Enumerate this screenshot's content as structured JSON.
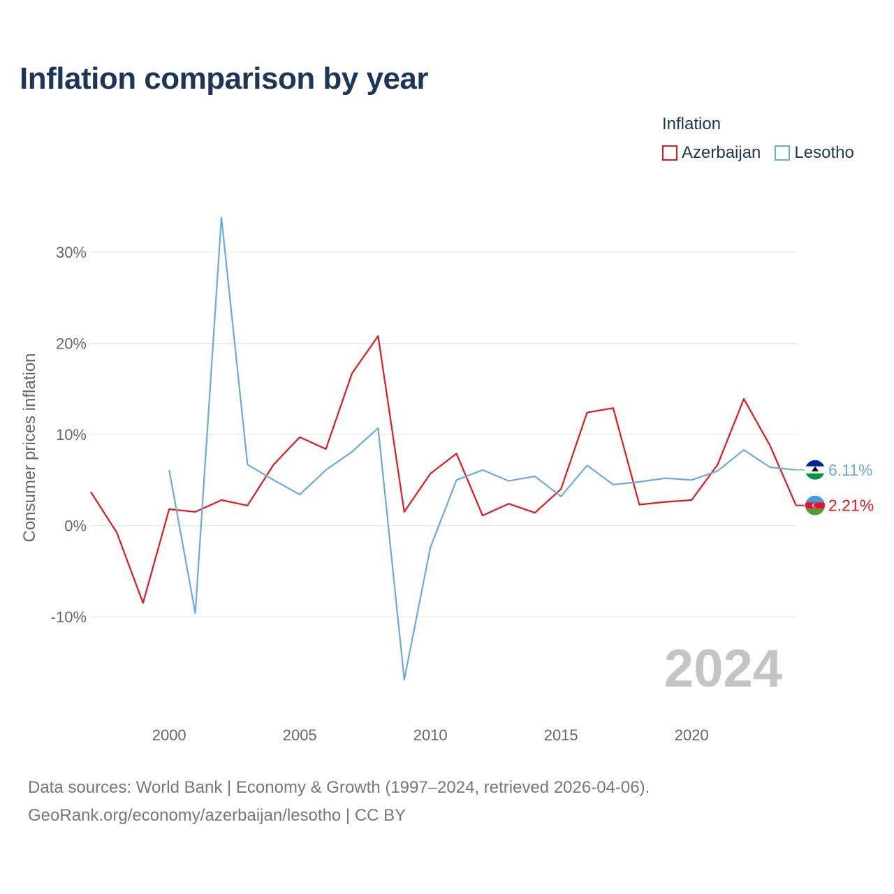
{
  "title": "Inflation comparison by year",
  "legend": {
    "title": "Inflation",
    "items": [
      {
        "name": "Azerbaijan",
        "color": "#e3191c"
      },
      {
        "name": "Lesotho",
        "color": "#6aaae4"
      }
    ]
  },
  "source": {
    "line1": "Data sources: World Bank | Economy & Growth (1997–2024, retrieved 2026-04-06).",
    "line2": "GeoRank.org/economy/azerbaijan/lesotho | CC BY"
  },
  "chart_data": {
    "type": "line",
    "title": "Inflation comparison by year",
    "ylabel": "Consumer prices inflation",
    "xlabel": "",
    "xlim": [
      1997,
      2024
    ],
    "ylim": [
      -20,
      37
    ],
    "yticks": [
      -10,
      0,
      10,
      20,
      30
    ],
    "ytick_labels": [
      "-10%",
      "0%",
      "10%",
      "20%",
      "30%"
    ],
    "xticks": [
      2000,
      2005,
      2010,
      2015,
      2020
    ],
    "xtick_labels": [
      "2000",
      "2005",
      "2010",
      "2015",
      "2020"
    ],
    "year_label": "2024",
    "series": [
      {
        "name": "Azerbaijan",
        "color": "#e3191c",
        "x": [
          1997,
          1998,
          1999,
          2000,
          2001,
          2002,
          2003,
          2004,
          2005,
          2006,
          2007,
          2008,
          2009,
          2010,
          2011,
          2012,
          2013,
          2014,
          2015,
          2016,
          2017,
          2018,
          2019,
          2020,
          2021,
          2022,
          2023,
          2024
        ],
        "values": [
          3.7,
          -0.8,
          -8.5,
          1.8,
          1.5,
          2.8,
          2.2,
          6.7,
          9.7,
          8.4,
          16.7,
          20.8,
          1.5,
          5.7,
          7.9,
          1.1,
          2.4,
          1.4,
          4.0,
          12.4,
          12.9,
          2.3,
          2.6,
          2.8,
          6.7,
          13.9,
          8.8,
          2.21
        ],
        "end_label": "2.21%"
      },
      {
        "name": "Lesotho",
        "color": "#6aaae4",
        "x": [
          2000,
          2001,
          2002,
          2003,
          2004,
          2005,
          2006,
          2007,
          2008,
          2009,
          2010,
          2011,
          2012,
          2013,
          2014,
          2015,
          2016,
          2017,
          2018,
          2019,
          2020,
          2021,
          2022,
          2023,
          2024
        ],
        "values": [
          6.1,
          -9.6,
          33.8,
          6.7,
          5.0,
          3.4,
          6.1,
          8.1,
          10.7,
          -16.9,
          -2.4,
          5.0,
          6.1,
          4.9,
          5.4,
          3.2,
          6.6,
          4.5,
          4.8,
          5.2,
          5.0,
          6.0,
          8.3,
          6.4,
          6.11
        ],
        "end_label": "6.11%"
      }
    ]
  }
}
